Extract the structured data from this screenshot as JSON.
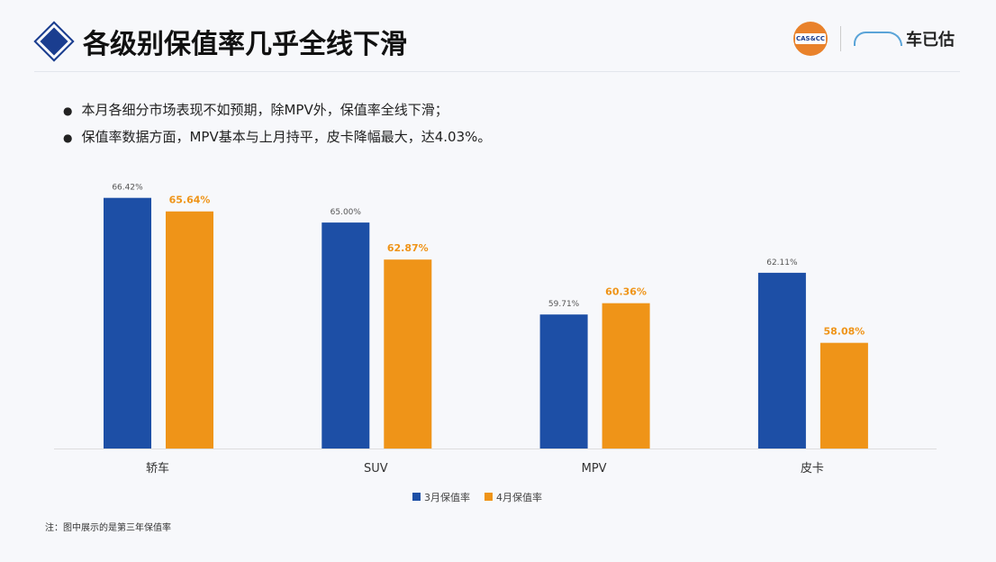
{
  "header": {
    "title": "各级别保值率几乎全线下滑",
    "logo_left": "CASCC",
    "logo_right": "车已估"
  },
  "bullets": [
    "本月各细分市场表现不如预期，除MPV外，保值率全线下滑；",
    "保值率数据方面，MPV基本与上月持平，皮卡降幅最大，达4.03%。"
  ],
  "note": "注：图中展示的是第三年保值率",
  "chart_data": {
    "type": "bar",
    "categories": [
      "轿车",
      "SUV",
      "MPV",
      "皮卡"
    ],
    "series": [
      {
        "name": "3月保值率",
        "values": [
          66.42,
          65.0,
          59.71,
          62.11
        ],
        "labels": [
          "66.42%",
          "65.00%",
          "59.71%",
          "62.11%"
        ],
        "color": "#1d4fa6"
      },
      {
        "name": "4月保值率",
        "values": [
          65.64,
          62.87,
          60.36,
          58.08
        ],
        "labels": [
          "65.64%",
          "62.87%",
          "60.36%",
          "58.08%"
        ],
        "color": "#ef9418"
      }
    ],
    "ylim": [
      52,
      68
    ],
    "grid": false,
    "legend": "bottom"
  }
}
